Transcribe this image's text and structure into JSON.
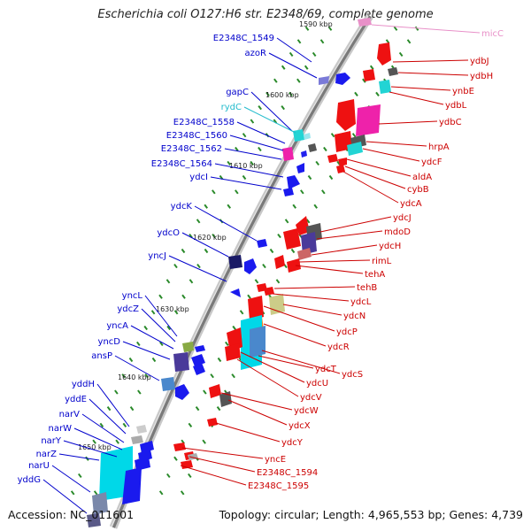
{
  "title": "Escherichia coli O127:H6 str. E2348/69, complete genome",
  "accession": "Accession: NC_011601",
  "topology": "Topology: circular; Length: 4,965,553 bp; Genes: 4,739",
  "colors": {
    "plus_strand": "#0000dd",
    "minus_strand": "#dd0000",
    "rna": "#33cccc",
    "rna_minus": "#e890c8",
    "backbone": "#808080",
    "tick": "#2a8a2a"
  },
  "tick_labels": [
    "1590 kbp",
    "1600 kbp",
    "1610 kbp",
    "1620 kbp",
    "1630 kbp",
    "1640 kbp",
    "1650 kbp"
  ],
  "left_labels": [
    {
      "text": "E2348C_1549",
      "color": "#0000cc"
    },
    {
      "text": "azoR",
      "color": "#0000cc"
    },
    {
      "text": "gapC",
      "color": "#0000cc"
    },
    {
      "text": "rydC",
      "color": "#22bbcc"
    },
    {
      "text": "E2348C_1558",
      "color": "#0000cc"
    },
    {
      "text": "E2348C_1560",
      "color": "#0000cc"
    },
    {
      "text": "E2348C_1562",
      "color": "#0000cc"
    },
    {
      "text": "E2348C_1564",
      "color": "#0000cc"
    },
    {
      "text": "ydcI",
      "color": "#0000cc"
    },
    {
      "text": "ydcK",
      "color": "#0000cc"
    },
    {
      "text": "ydcO",
      "color": "#0000cc"
    },
    {
      "text": "yncJ",
      "color": "#0000cc"
    },
    {
      "text": "yncL",
      "color": "#0000cc"
    },
    {
      "text": "ydcZ",
      "color": "#0000cc"
    },
    {
      "text": "yncA",
      "color": "#0000cc"
    },
    {
      "text": "yncD",
      "color": "#0000cc"
    },
    {
      "text": "ansP",
      "color": "#0000cc"
    },
    {
      "text": "yddH",
      "color": "#0000cc"
    },
    {
      "text": "yddE",
      "color": "#0000cc"
    },
    {
      "text": "narV",
      "color": "#0000cc"
    },
    {
      "text": "narW",
      "color": "#0000cc"
    },
    {
      "text": "narY",
      "color": "#0000cc"
    },
    {
      "text": "narZ",
      "color": "#0000cc"
    },
    {
      "text": "narU",
      "color": "#0000cc"
    },
    {
      "text": "yddG",
      "color": "#0000cc"
    }
  ],
  "right_labels": [
    {
      "text": "micC",
      "color": "#e890c8"
    },
    {
      "text": "ydbJ",
      "color": "#cc0000"
    },
    {
      "text": "ydbH",
      "color": "#cc0000"
    },
    {
      "text": "ynbE",
      "color": "#cc0000"
    },
    {
      "text": "ydbL",
      "color": "#cc0000"
    },
    {
      "text": "ydbC",
      "color": "#cc0000"
    },
    {
      "text": "hrpA",
      "color": "#cc0000"
    },
    {
      "text": "ydcF",
      "color": "#cc0000"
    },
    {
      "text": "aldA",
      "color": "#cc0000"
    },
    {
      "text": "cybB",
      "color": "#cc0000"
    },
    {
      "text": "ydcA",
      "color": "#cc0000"
    },
    {
      "text": "ydcJ",
      "color": "#cc0000"
    },
    {
      "text": "mdoD",
      "color": "#cc0000"
    },
    {
      "text": "ydcH",
      "color": "#cc0000"
    },
    {
      "text": "rimL",
      "color": "#cc0000"
    },
    {
      "text": "tehA",
      "color": "#cc0000"
    },
    {
      "text": "tehB",
      "color": "#cc0000"
    },
    {
      "text": "ydcL",
      "color": "#cc0000"
    },
    {
      "text": "ydcN",
      "color": "#cc0000"
    },
    {
      "text": "ydcP",
      "color": "#cc0000"
    },
    {
      "text": "ydcR",
      "color": "#cc0000"
    },
    {
      "text": "ydcT",
      "color": "#cc0000"
    },
    {
      "text": "ydcS",
      "color": "#cc0000"
    },
    {
      "text": "ydcU",
      "color": "#cc0000"
    },
    {
      "text": "ydcV",
      "color": "#cc0000"
    },
    {
      "text": "ydcW",
      "color": "#cc0000"
    },
    {
      "text": "ydcX",
      "color": "#cc0000"
    },
    {
      "text": "ydcY",
      "color": "#cc0000"
    },
    {
      "text": "yncE",
      "color": "#cc0000"
    },
    {
      "text": "E2348C_1594",
      "color": "#cc0000"
    },
    {
      "text": "E2348C_1595",
      "color": "#cc0000"
    }
  ]
}
